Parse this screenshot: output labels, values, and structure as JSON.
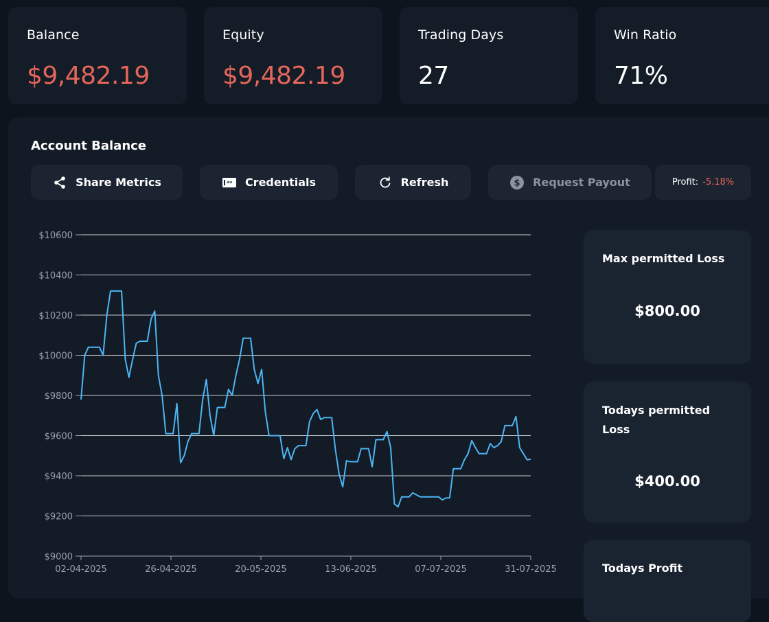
{
  "stats": [
    {
      "label": "Balance",
      "value": "$9,482.19",
      "tone": "neg"
    },
    {
      "label": "Equity",
      "value": "$9,482.19",
      "tone": "neg"
    },
    {
      "label": "Trading Days",
      "value": "27",
      "tone": "pos"
    },
    {
      "label": "Win Ratio",
      "value": "71%",
      "tone": "pos"
    }
  ],
  "panel": {
    "title": "Account Balance",
    "buttons": {
      "share": "Share Metrics",
      "credentials": "Credentials",
      "refresh": "Refresh",
      "payout": "Request Payout"
    },
    "profit": {
      "label": "Profit:",
      "value": "-5.18%"
    }
  },
  "side": {
    "max_loss": {
      "title": "Max permitted Loss",
      "value": "$800.00"
    },
    "today_loss": {
      "title": "Todays permitted Loss",
      "value": "$400.00"
    },
    "today_profit": {
      "title": "Todays Profit"
    }
  },
  "colors": {
    "negative": "#e5665a",
    "line": "#4db5f5",
    "panel": "#131b26"
  },
  "chart_data": {
    "type": "line",
    "title": "Account Balance",
    "ylim": [
      9000,
      10600
    ],
    "yticks": [
      "$10600",
      "$10400",
      "$10200",
      "$10000",
      "$9800",
      "$9600",
      "$9400",
      "$9200",
      "$9000"
    ],
    "xticks": [
      "02-04-2025",
      "26-04-2025",
      "20-05-2025",
      "13-06-2025",
      "07-07-2025",
      "31-07-2025"
    ],
    "xrange": [
      0,
      120
    ],
    "series": [
      {
        "name": "Balance",
        "points": [
          [
            0,
            9780
          ],
          [
            1,
            10000
          ],
          [
            2,
            10040
          ],
          [
            3,
            10040
          ],
          [
            4,
            10040
          ],
          [
            5,
            10040
          ],
          [
            6,
            10000
          ],
          [
            7,
            10200
          ],
          [
            8,
            10320
          ],
          [
            9,
            10320
          ],
          [
            10,
            10320
          ],
          [
            11,
            10320
          ],
          [
            12,
            9980
          ],
          [
            13,
            9890
          ],
          [
            14,
            9980
          ],
          [
            15,
            10060
          ],
          [
            16,
            10070
          ],
          [
            17,
            10070
          ],
          [
            18,
            10070
          ],
          [
            19,
            10180
          ],
          [
            20,
            10220
          ],
          [
            21,
            9900
          ],
          [
            22,
            9800
          ],
          [
            23,
            9610
          ],
          [
            24,
            9610
          ],
          [
            25,
            9610
          ],
          [
            26,
            9760
          ],
          [
            27,
            9465
          ],
          [
            28,
            9500
          ],
          [
            29,
            9570
          ],
          [
            30,
            9610
          ],
          [
            31,
            9610
          ],
          [
            32,
            9610
          ],
          [
            33,
            9780
          ],
          [
            34,
            9880
          ],
          [
            35,
            9700
          ],
          [
            36,
            9600
          ],
          [
            37,
            9740
          ],
          [
            38,
            9740
          ],
          [
            39,
            9740
          ],
          [
            40,
            9830
          ],
          [
            41,
            9800
          ],
          [
            42,
            9900
          ],
          [
            43,
            9980
          ],
          [
            44,
            10085
          ],
          [
            45,
            10085
          ],
          [
            46,
            10085
          ],
          [
            47,
            9930
          ],
          [
            48,
            9860
          ],
          [
            49,
            9930
          ],
          [
            50,
            9720
          ],
          [
            51,
            9600
          ],
          [
            52,
            9600
          ],
          [
            53,
            9600
          ],
          [
            54,
            9600
          ],
          [
            55,
            9485
          ],
          [
            56,
            9540
          ],
          [
            57,
            9480
          ],
          [
            58,
            9535
          ],
          [
            59,
            9550
          ],
          [
            60,
            9550
          ],
          [
            61,
            9550
          ],
          [
            62,
            9670
          ],
          [
            63,
            9710
          ],
          [
            64,
            9730
          ],
          [
            65,
            9680
          ],
          [
            66,
            9690
          ],
          [
            67,
            9690
          ],
          [
            68,
            9690
          ],
          [
            69,
            9530
          ],
          [
            70,
            9410
          ],
          [
            71,
            9345
          ],
          [
            72,
            9475
          ],
          [
            73,
            9470
          ],
          [
            74,
            9470
          ],
          [
            75,
            9470
          ],
          [
            76,
            9535
          ],
          [
            77,
            9535
          ],
          [
            78,
            9535
          ],
          [
            79,
            9445
          ],
          [
            80,
            9580
          ],
          [
            81,
            9580
          ],
          [
            82,
            9580
          ],
          [
            83,
            9620
          ],
          [
            84,
            9540
          ],
          [
            85,
            9260
          ],
          [
            86,
            9245
          ],
          [
            87,
            9295
          ],
          [
            88,
            9295
          ],
          [
            89,
            9295
          ],
          [
            90,
            9315
          ],
          [
            91,
            9305
          ],
          [
            92,
            9295
          ],
          [
            93,
            9295
          ],
          [
            94,
            9295
          ],
          [
            95,
            9295
          ],
          [
            96,
            9295
          ],
          [
            97,
            9295
          ],
          [
            98,
            9280
          ],
          [
            99,
            9290
          ],
          [
            100,
            9290
          ],
          [
            101,
            9435
          ],
          [
            102,
            9435
          ],
          [
            103,
            9435
          ],
          [
            104,
            9480
          ],
          [
            105,
            9510
          ],
          [
            106,
            9575
          ],
          [
            107,
            9540
          ],
          [
            108,
            9510
          ],
          [
            109,
            9510
          ],
          [
            110,
            9510
          ],
          [
            111,
            9560
          ],
          [
            112,
            9540
          ],
          [
            113,
            9550
          ],
          [
            114,
            9570
          ],
          [
            115,
            9650
          ],
          [
            116,
            9650
          ],
          [
            117,
            9650
          ],
          [
            118,
            9695
          ],
          [
            119,
            9540
          ],
          [
            120,
            9510
          ],
          [
            121,
            9480
          ],
          [
            122,
            9482
          ]
        ]
      }
    ]
  }
}
